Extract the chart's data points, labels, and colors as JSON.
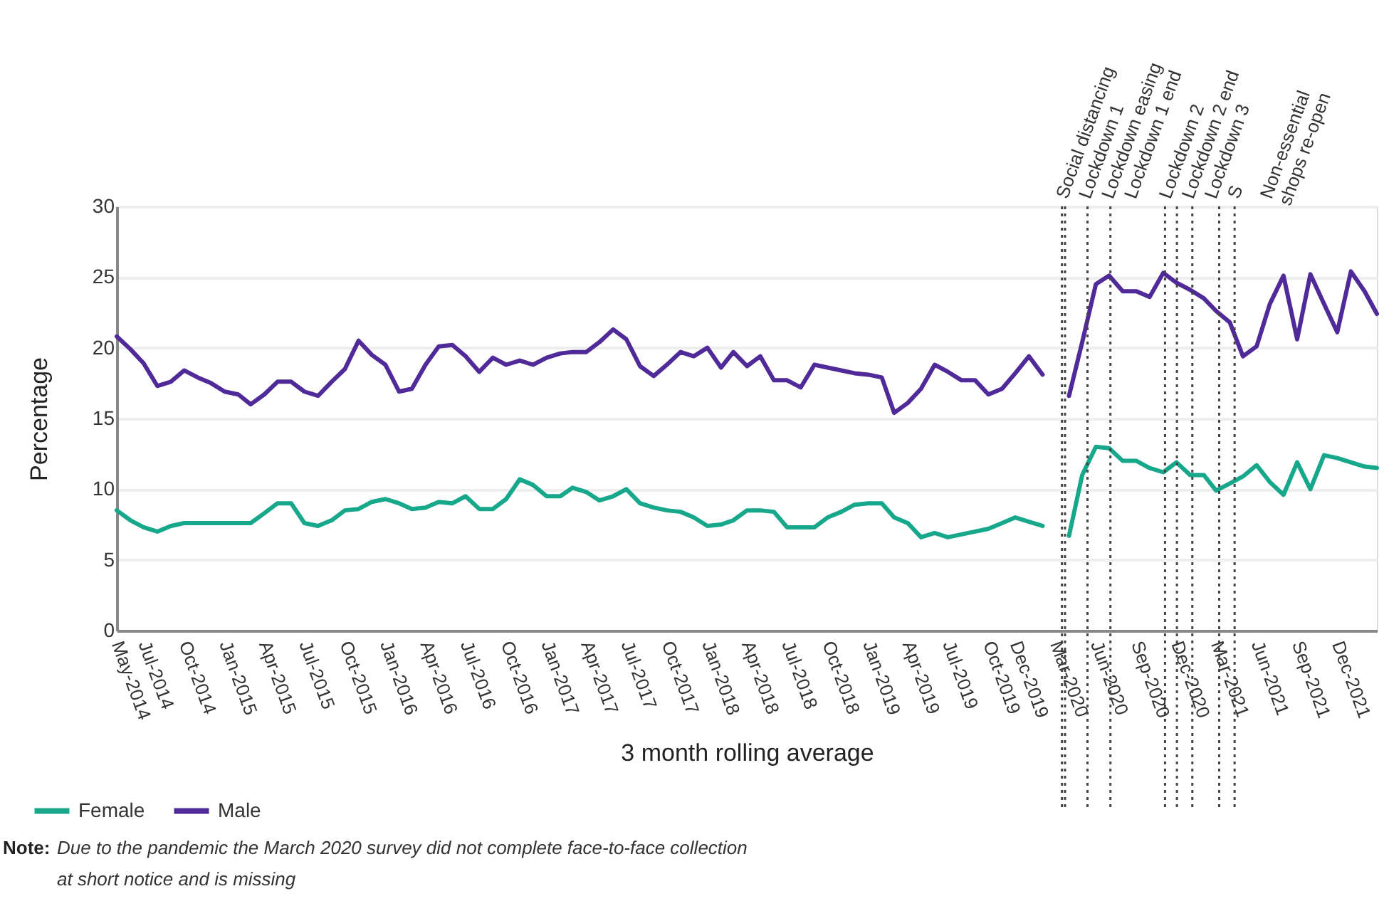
{
  "chart_data": {
    "type": "line",
    "xlabel": "3 month rolling average",
    "ylabel": "Percentage",
    "x": [
      "2014-05",
      "2014-06",
      "2014-07",
      "2014-08",
      "2014-09",
      "2014-10",
      "2014-11",
      "2014-12",
      "2015-01",
      "2015-02",
      "2015-03",
      "2015-04",
      "2015-05",
      "2015-06",
      "2015-07",
      "2015-08",
      "2015-09",
      "2015-10",
      "2015-11",
      "2015-12",
      "2016-01",
      "2016-02",
      "2016-03",
      "2016-04",
      "2016-05",
      "2016-06",
      "2016-07",
      "2016-08",
      "2016-09",
      "2016-10",
      "2016-11",
      "2016-12",
      "2017-01",
      "2017-02",
      "2017-03",
      "2017-04",
      "2017-05",
      "2017-06",
      "2017-07",
      "2017-08",
      "2017-09",
      "2017-10",
      "2017-11",
      "2017-12",
      "2018-01",
      "2018-02",
      "2018-03",
      "2018-04",
      "2018-05",
      "2018-06",
      "2018-07",
      "2018-08",
      "2018-09",
      "2018-10",
      "2018-11",
      "2018-12",
      "2019-01",
      "2019-02",
      "2019-03",
      "2019-04",
      "2019-05",
      "2019-06",
      "2019-07",
      "2019-08",
      "2019-09",
      "2019-10",
      "2019-11",
      "2019-12",
      "2020-01",
      "2020-02",
      "2020-03",
      "2020-04",
      "2020-05",
      "2020-06",
      "2020-07",
      "2020-08",
      "2020-09",
      "2020-10",
      "2020-11",
      "2020-12",
      "2021-01",
      "2021-02",
      "2021-03",
      "2021-04",
      "2021-05",
      "2021-06",
      "2021-07",
      "2021-08",
      "2021-09",
      "2021-10",
      "2021-11",
      "2021-12",
      "2022-01",
      "2022-02",
      "2022-03"
    ],
    "series": [
      {
        "name": "Female",
        "color": "#17a88b",
        "values": [
          8.5,
          7.8,
          7.3,
          7.0,
          7.4,
          7.6,
          7.6,
          7.6,
          7.6,
          7.6,
          7.6,
          8.3,
          9.0,
          9.0,
          7.6,
          7.4,
          7.8,
          8.5,
          8.6,
          9.1,
          9.3,
          9.0,
          8.6,
          8.7,
          9.1,
          9.0,
          9.5,
          8.6,
          8.6,
          9.3,
          10.7,
          10.3,
          9.5,
          9.5,
          10.1,
          9.8,
          9.2,
          9.5,
          10.0,
          9.0,
          8.7,
          8.5,
          8.4,
          8.0,
          7.4,
          7.5,
          7.8,
          8.5,
          8.5,
          8.4,
          7.3,
          7.3,
          7.3,
          8.0,
          8.4,
          8.9,
          9.0,
          9.0,
          8.0,
          7.6,
          6.6,
          6.9,
          6.6,
          6.8,
          7.0,
          7.2,
          7.6,
          8.0,
          7.7,
          7.4,
          null,
          6.7,
          11.0,
          13.0,
          12.9,
          12.0,
          12.0,
          11.5,
          11.2,
          11.9,
          11.0,
          11.0,
          9.9,
          10.4,
          10.9,
          11.7,
          10.5,
          9.6,
          11.9,
          10.0,
          12.4,
          12.2,
          11.9,
          11.6,
          11.5
        ]
      },
      {
        "name": "Male",
        "color": "#4f2a98",
        "values": [
          20.8,
          19.9,
          18.9,
          17.3,
          17.6,
          18.4,
          17.9,
          17.5,
          16.9,
          16.7,
          16.0,
          16.7,
          17.6,
          17.6,
          16.9,
          16.6,
          17.6,
          18.5,
          20.5,
          19.5,
          18.8,
          16.9,
          17.1,
          18.8,
          20.1,
          20.2,
          19.4,
          18.3,
          19.3,
          18.8,
          19.1,
          18.8,
          19.3,
          19.6,
          19.7,
          19.7,
          20.4,
          21.3,
          20.6,
          18.7,
          18.0,
          18.8,
          19.7,
          19.4,
          20.0,
          18.6,
          19.7,
          18.7,
          19.4,
          17.7,
          17.7,
          17.2,
          18.8,
          18.6,
          18.4,
          18.2,
          18.1,
          17.9,
          15.4,
          16.1,
          17.1,
          18.8,
          18.3,
          17.7,
          17.7,
          16.7,
          17.1,
          18.2,
          19.4,
          18.1,
          null,
          16.6,
          20.4,
          24.5,
          25.1,
          24.0,
          24.0,
          23.6,
          25.3,
          24.6,
          24.1,
          23.5,
          22.6,
          21.8,
          19.4,
          20.1,
          23.1,
          25.1,
          20.6,
          25.2,
          23.1,
          21.1,
          25.4,
          24.0,
          22.4
        ]
      }
    ],
    "xlim": [
      "2014-05",
      "2022-03"
    ],
    "xticks": [
      {
        "value": "2014-05",
        "label": "May-2014"
      },
      {
        "value": "2014-07",
        "label": "Jul-2014"
      },
      {
        "value": "2014-10",
        "label": "Oct-2014"
      },
      {
        "value": "2015-01",
        "label": "Jan-2015"
      },
      {
        "value": "2015-04",
        "label": "Apr-2015"
      },
      {
        "value": "2015-07",
        "label": "Jul-2015"
      },
      {
        "value": "2015-10",
        "label": "Oct-2015"
      },
      {
        "value": "2016-01",
        "label": "Jan-2016"
      },
      {
        "value": "2016-04",
        "label": "Apr-2016"
      },
      {
        "value": "2016-07",
        "label": "Jul-2016"
      },
      {
        "value": "2016-10",
        "label": "Oct-2016"
      },
      {
        "value": "2017-01",
        "label": "Jan-2017"
      },
      {
        "value": "2017-04",
        "label": "Apr-2017"
      },
      {
        "value": "2017-07",
        "label": "Jul-2017"
      },
      {
        "value": "2017-10",
        "label": "Oct-2017"
      },
      {
        "value": "2018-01",
        "label": "Jan-2018"
      },
      {
        "value": "2018-04",
        "label": "Apr-2018"
      },
      {
        "value": "2018-07",
        "label": "Jul-2018"
      },
      {
        "value": "2018-10",
        "label": "Oct-2018"
      },
      {
        "value": "2019-01",
        "label": "Jan-2019"
      },
      {
        "value": "2019-04",
        "label": "Apr-2019"
      },
      {
        "value": "2019-07",
        "label": "Jul-2019"
      },
      {
        "value": "2019-10",
        "label": "Oct-2019"
      },
      {
        "value": "2019-12",
        "label": "Dec-2019"
      },
      {
        "value": "2020-03",
        "label": "Mar-2020"
      },
      {
        "value": "2020-06",
        "label": "Jun-2020"
      },
      {
        "value": "2020-09",
        "label": "Sep-2020"
      },
      {
        "value": "2020-12",
        "label": "Dec-2020"
      },
      {
        "value": "2021-03",
        "label": "Mar-2021"
      },
      {
        "value": "2021-06",
        "label": "Jun-2021"
      },
      {
        "value": "2021-09",
        "label": "Sep-2021"
      },
      {
        "value": "2021-12",
        "label": "Dec-2021"
      }
    ],
    "ylim": [
      0,
      30
    ],
    "yticks": [
      0,
      5,
      10,
      15,
      20,
      25,
      30
    ],
    "grid": "y",
    "legend": "bottom left",
    "line_style": "solid",
    "marker": "none",
    "ref_lines": [
      {
        "axis": "x",
        "value": "2020-03-16",
        "label": "Social distancing",
        "color": "#444444",
        "line_style": "dotted"
      },
      {
        "axis": "x",
        "value": "2020-03-23",
        "label": "Lockdown 1",
        "color": "#444444",
        "line_style": "dotted"
      },
      {
        "axis": "x",
        "value": "2020-05-13",
        "label": "Lockdown easing",
        "color": "#444444",
        "line_style": "dotted"
      },
      {
        "axis": "x",
        "value": "2020-07-04",
        "label": "Lockdown 1 end",
        "color": "#444444",
        "line_style": "dotted"
      },
      {
        "axis": "x",
        "value": "2020-11-05",
        "label": "Lockdown 2",
        "color": "#444444",
        "line_style": "dotted"
      },
      {
        "axis": "x",
        "value": "2020-12-02",
        "label": "Lockdown 2 end",
        "color": "#444444",
        "line_style": "dotted"
      },
      {
        "axis": "x",
        "value": "2021-01-06",
        "label": "Lockdown 3",
        "color": "#444444",
        "line_style": "dotted"
      },
      {
        "axis": "x",
        "value": "2021-03-08",
        "label": "S",
        "color": "#444444",
        "line_style": "dotted"
      },
      {
        "axis": "x",
        "value": "2021-04-12",
        "label": "Non-essential shops re-open",
        "color": "#444444",
        "line_style": "dotted"
      }
    ],
    "annotations": [
      "Note:",
      "Due to the pandemic the March 2020 survey did not complete face-to-face collection at short notice and is missing"
    ]
  }
}
